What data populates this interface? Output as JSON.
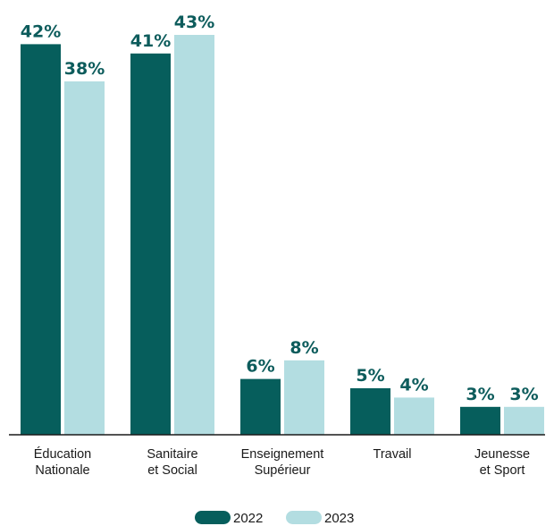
{
  "chart_data": {
    "type": "bar",
    "categories": [
      [
        "Éducation",
        "Nationale"
      ],
      [
        "Sanitaire",
        "et Social"
      ],
      [
        "Enseignement",
        "Supérieur"
      ],
      [
        "Travail"
      ],
      [
        "Jeunesse",
        "et Sport"
      ]
    ],
    "series": [
      {
        "name": "2022",
        "values": [
          42,
          41,
          6,
          5,
          3
        ],
        "labels": [
          "42%",
          "41%",
          "6%",
          "5%",
          "3%"
        ],
        "color": "#065e5c"
      },
      {
        "name": "2023",
        "values": [
          38,
          43,
          8,
          4,
          3
        ],
        "labels": [
          "38%",
          "43%",
          "8%",
          "4%",
          "3%"
        ],
        "color": "#b3dde1"
      }
    ],
    "ylim": [
      0,
      45
    ],
    "grid": false,
    "legend_position": "bottom-center",
    "value_label_color": "#0d5c5c"
  }
}
